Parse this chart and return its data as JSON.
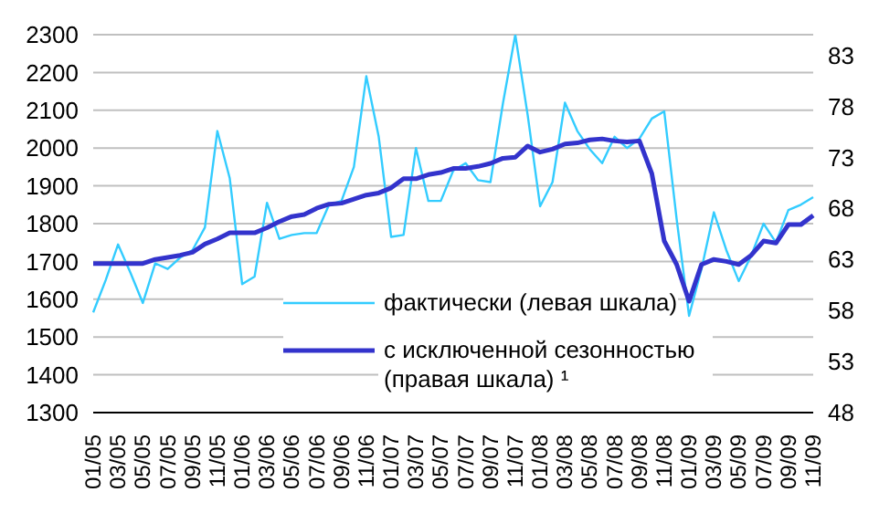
{
  "chart_data": {
    "type": "line",
    "categories": [
      "01/05",
      null,
      "03/05",
      null,
      "05/05",
      null,
      "07/05",
      null,
      "09/05",
      null,
      "11/05",
      null,
      "01/06",
      null,
      "03/06",
      null,
      "05/06",
      null,
      "07/06",
      null,
      "09/06",
      null,
      "11/06",
      null,
      "01/07",
      null,
      "03/07",
      null,
      "05/07",
      null,
      "07/07",
      null,
      "09/07",
      null,
      "11/07",
      null,
      "01/08",
      null,
      "03/08",
      null,
      "05/08",
      null,
      "07/08",
      null,
      "09/08",
      null,
      "11/08",
      null,
      "01/09",
      null,
      "03/09",
      null,
      "05/09",
      null,
      "07/09",
      null,
      "09/09",
      null,
      "11/09"
    ],
    "series": [
      {
        "name": "фактически (левая шкала)",
        "color": "#33ccff",
        "values": [
          1565,
          1650,
          1745,
          1670,
          1590,
          1695,
          1680,
          1710,
          1730,
          1790,
          2045,
          1920,
          1640,
          1660,
          1855,
          1760,
          1770,
          1775,
          1775,
          1850,
          1860,
          1950,
          2190,
          2030,
          1765,
          1770,
          2000,
          1860,
          1860,
          1940,
          1960,
          1915,
          1910,
          2117,
          2300,
          2087,
          1846,
          1910,
          2120,
          2045,
          1997,
          1960,
          2030,
          2000,
          2025,
          2078,
          2097,
          1812,
          1556,
          1680,
          1830,
          1730,
          1648,
          1715,
          1800,
          1750,
          1836,
          1850,
          1870
        ]
      },
      {
        "name": "с исключенной сезонностью (правая шкала) ¹",
        "color": "#3333cc",
        "axis": "y2",
        "values": [
          62.6,
          62.6,
          62.6,
          62.6,
          62.6,
          63.0,
          63.2,
          63.4,
          63.7,
          64.5,
          65.0,
          65.6,
          65.6,
          65.6,
          66.1,
          66.7,
          67.2,
          67.4,
          68.0,
          68.4,
          68.5,
          68.9,
          69.3,
          69.5,
          70.0,
          70.9,
          70.9,
          71.3,
          71.5,
          71.9,
          71.9,
          72.1,
          72.4,
          72.9,
          73.0,
          74.1,
          73.5,
          73.8,
          74.3,
          74.4,
          74.7,
          74.8,
          74.6,
          74.5,
          74.6,
          71.4,
          64.8,
          62.5,
          58.9,
          62.5,
          63.0,
          62.8,
          62.5,
          63.4,
          64.8,
          64.6,
          66.4,
          66.4,
          67.3
        ]
      }
    ],
    "ylim": [
      1300,
      2300
    ],
    "yticks": [
      1300,
      1400,
      1500,
      1600,
      1700,
      1800,
      1900,
      2000,
      2100,
      2200,
      2300
    ],
    "y2lim": [
      48,
      85
    ],
    "y2ticks": [
      48,
      53,
      58,
      63,
      68,
      73,
      78,
      83
    ],
    "grid": "y",
    "legend": "bottom"
  }
}
